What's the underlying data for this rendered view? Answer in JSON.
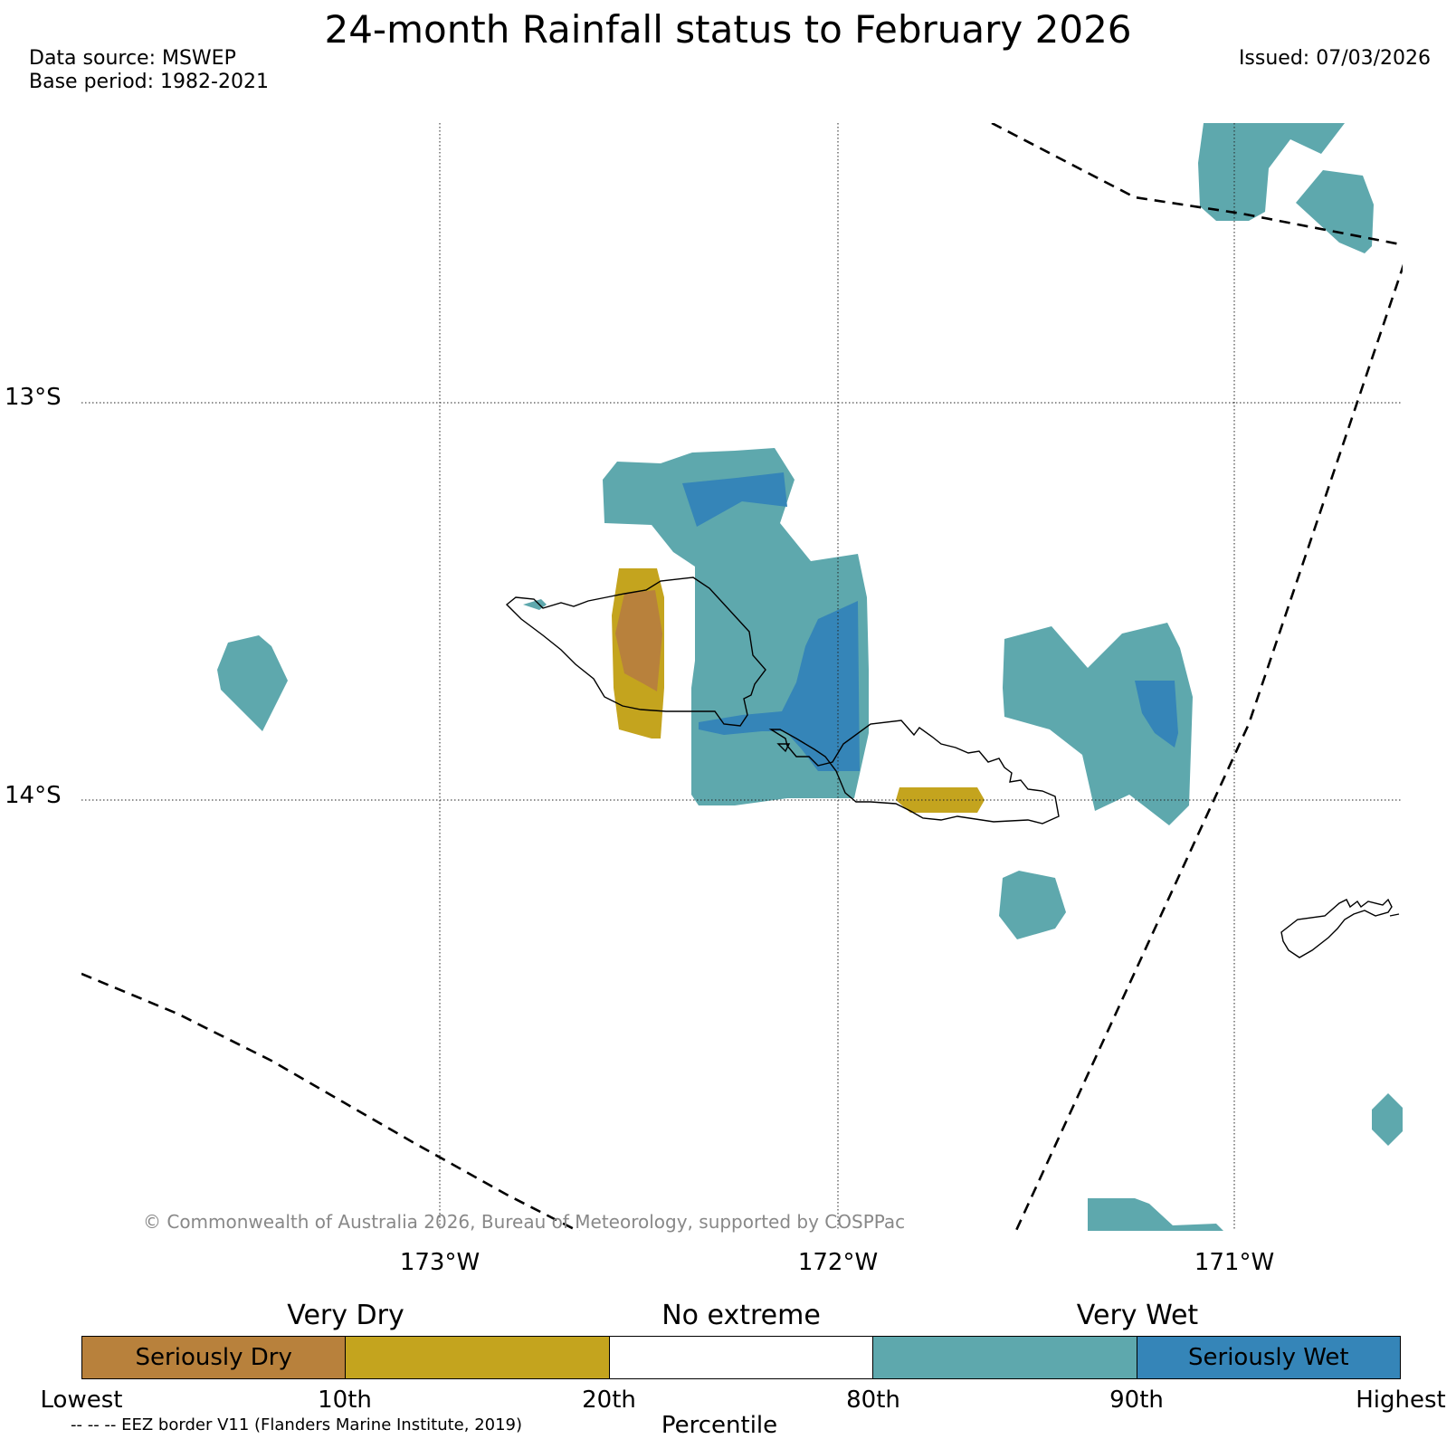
{
  "header": {
    "title": "24-month Rainfall status to February 2026",
    "data_source": "Data source: MSWEP",
    "base_period": "Base period: 1982-2021",
    "issued": "Issued: 07/03/2026"
  },
  "map": {
    "lat_labels": [
      "13°S",
      "14°S"
    ],
    "lon_labels": [
      "173°W",
      "172°W",
      "171°W"
    ],
    "copyright": "© Commonwealth of Australia 2026, Bureau of Meteorology, supported by COSPPac"
  },
  "legend": {
    "categories": [
      "Very Dry",
      "No extreme",
      "Very Wet"
    ],
    "segments": [
      {
        "label": "Seriously Dry",
        "color": "#b8813c"
      },
      {
        "label": "",
        "color": "#c4a41e"
      },
      {
        "label": "",
        "color": "#ffffff"
      },
      {
        "label": "",
        "color": "#5ea8ad"
      },
      {
        "label": "Seriously Wet",
        "color": "#3585b8"
      }
    ],
    "ticks": [
      "Lowest",
      "10th",
      "20th",
      "80th",
      "90th",
      "Highest"
    ],
    "axis_label": "Percentile",
    "eez_note": "-- -- -- EEZ border V11 (Flanders Marine Institute, 2019)"
  }
}
